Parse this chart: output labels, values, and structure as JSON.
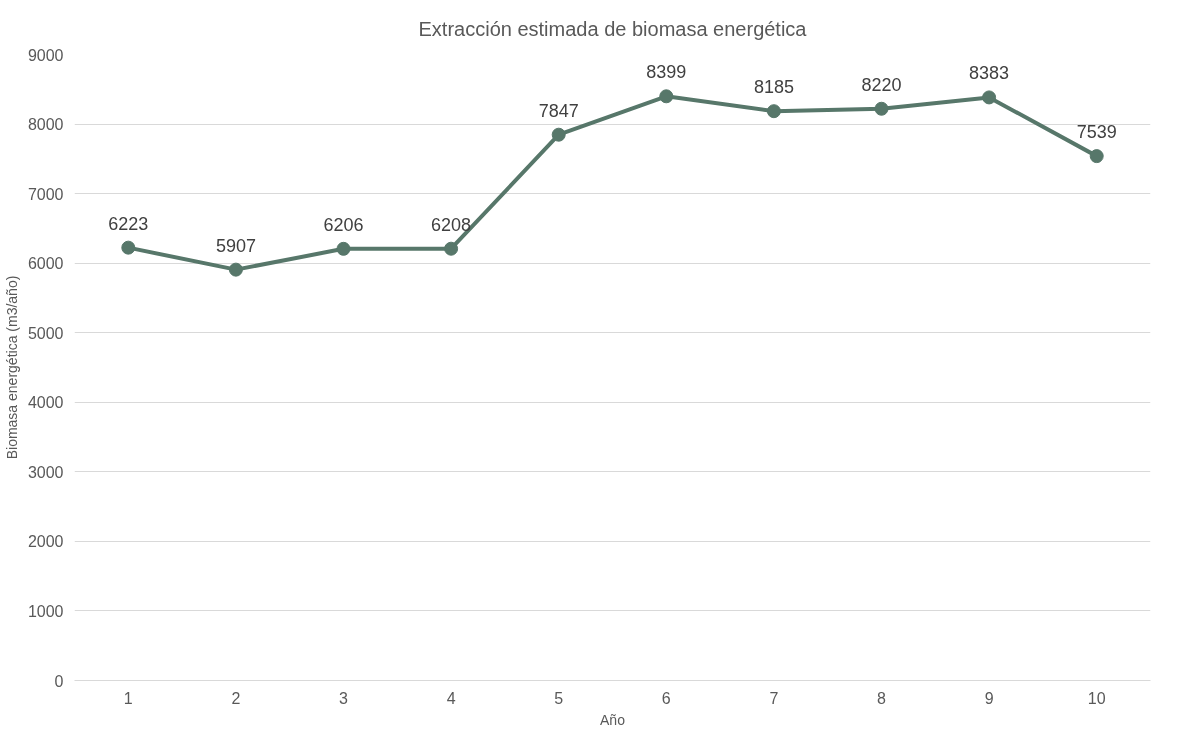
{
  "chart_data": {
    "type": "line",
    "title": "Extracción estimada de biomasa energética",
    "xlabel": "Año",
    "ylabel": "Biomasa energética (m3/año)",
    "categories": [
      "1",
      "2",
      "3",
      "4",
      "5",
      "6",
      "7",
      "8",
      "9",
      "10"
    ],
    "series": [
      {
        "color": "#57776a",
        "values": [
          6223,
          5907,
          6206,
          6208,
          7847,
          8399,
          8185,
          8220,
          8383,
          7539
        ]
      }
    ],
    "ylim": [
      0,
      9000
    ],
    "yticks": [
      0,
      1000,
      2000,
      3000,
      4000,
      5000,
      6000,
      7000,
      8000,
      9000
    ],
    "grid": "y",
    "marker": "circle",
    "line_style": "solid",
    "data_labels": true
  }
}
